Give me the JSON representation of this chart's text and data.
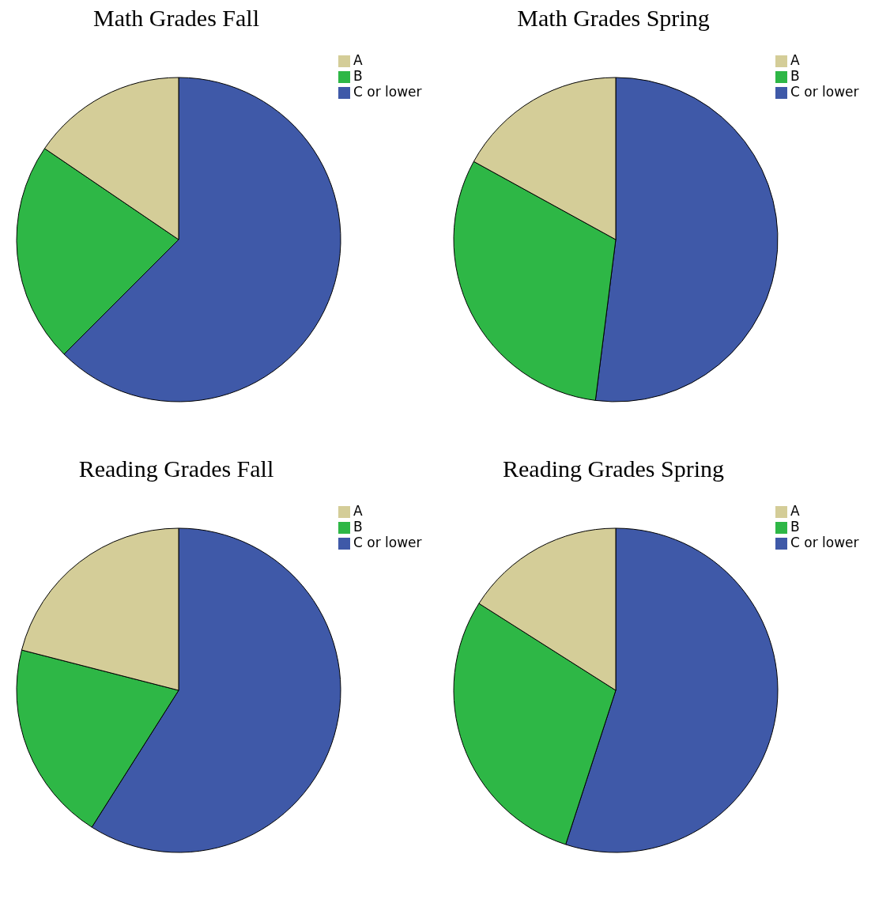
{
  "chart_data": [
    {
      "type": "pie",
      "title": "Math Grades Fall",
      "categories": [
        "C or lower",
        "B",
        "A"
      ],
      "values": [
        62.5,
        22,
        15.5
      ],
      "colors": [
        "#3f59a8",
        "#2eb746",
        "#d4cd98"
      ],
      "legend": "top right"
    },
    {
      "type": "pie",
      "title": "Math Grades Spring",
      "categories": [
        "C or lower",
        "B",
        "A"
      ],
      "values": [
        52,
        31,
        17
      ],
      "colors": [
        "#3f59a8",
        "#2eb746",
        "#d4cd98"
      ],
      "legend": "top right"
    },
    {
      "type": "pie",
      "title": "Reading Grades Fall",
      "categories": [
        "C or lower",
        "B",
        "A"
      ],
      "values": [
        59,
        20,
        21
      ],
      "colors": [
        "#3f59a8",
        "#2eb746",
        "#d4cd98"
      ],
      "legend": "top right"
    },
    {
      "type": "pie",
      "title": "Reading Grades Spring",
      "categories": [
        "C or lower",
        "B",
        "A"
      ],
      "values": [
        55,
        29,
        16
      ],
      "colors": [
        "#3f59a8",
        "#2eb746",
        "#d4cd98"
      ],
      "legend": "top right"
    }
  ]
}
